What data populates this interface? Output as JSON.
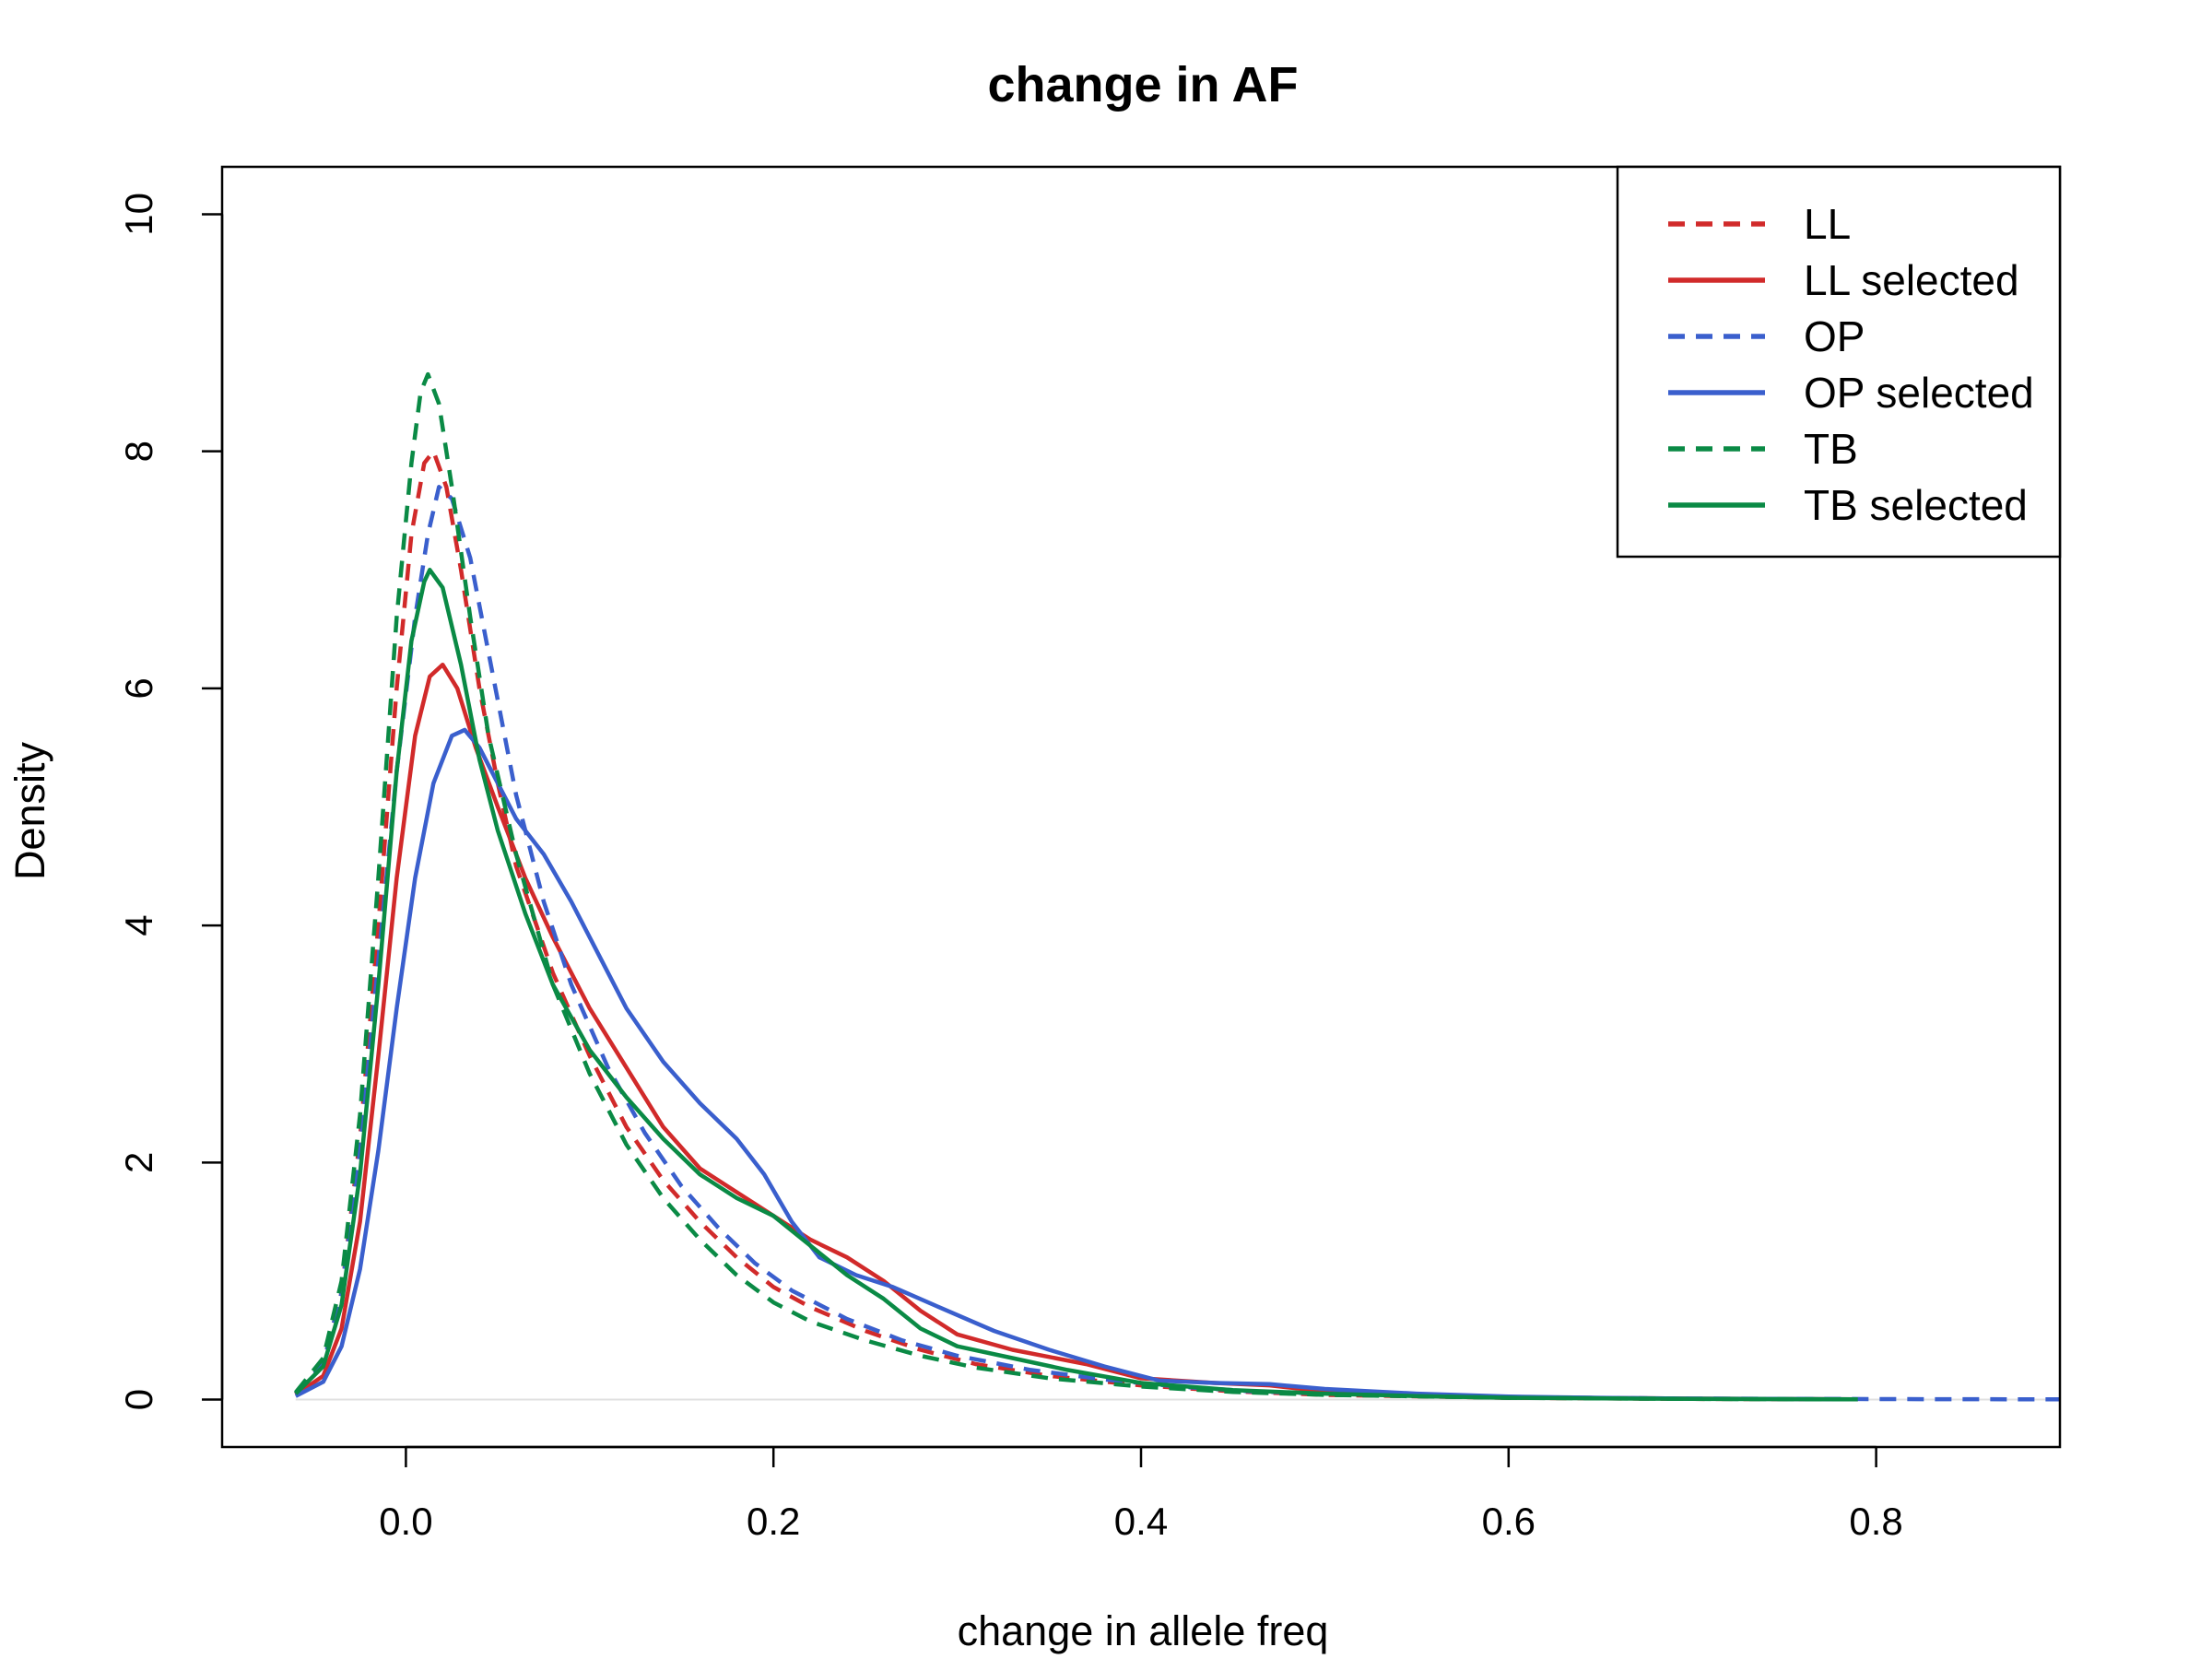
{
  "chart_data": {
    "type": "line",
    "title": "change in AF",
    "xlabel": "change in allele freq",
    "ylabel": "Density",
    "xlim": [
      -0.1,
      0.9
    ],
    "ylim": [
      -0.4,
      10.4
    ],
    "xticks": [
      0.0,
      0.2,
      0.4,
      0.6,
      0.8
    ],
    "xtick_labels": [
      "0.0",
      "0.2",
      "0.4",
      "0.6",
      "0.8"
    ],
    "yticks": [
      0,
      2,
      4,
      6,
      8,
      10
    ],
    "ytick_labels": [
      "0",
      "2",
      "4",
      "6",
      "8",
      "10"
    ],
    "grid": false,
    "legend_position": "top-right",
    "series": [
      {
        "name": "LL",
        "color": "#d12a2a",
        "dash": "dashed",
        "points": [
          [
            -0.06,
            0.05
          ],
          [
            -0.045,
            0.3
          ],
          [
            -0.035,
            0.9
          ],
          [
            -0.025,
            2.2
          ],
          [
            -0.015,
            4.0
          ],
          [
            -0.005,
            6.0
          ],
          [
            0.003,
            7.3
          ],
          [
            0.01,
            7.9
          ],
          [
            0.015,
            8.0
          ],
          [
            0.022,
            7.7
          ],
          [
            0.03,
            7.0
          ],
          [
            0.04,
            6.0
          ],
          [
            0.05,
            5.2
          ],
          [
            0.06,
            4.5
          ],
          [
            0.08,
            3.6
          ],
          [
            0.1,
            2.9
          ],
          [
            0.12,
            2.3
          ],
          [
            0.14,
            1.85
          ],
          [
            0.16,
            1.5
          ],
          [
            0.18,
            1.2
          ],
          [
            0.2,
            0.95
          ],
          [
            0.22,
            0.78
          ],
          [
            0.25,
            0.58
          ],
          [
            0.28,
            0.42
          ],
          [
            0.31,
            0.3
          ],
          [
            0.35,
            0.2
          ],
          [
            0.4,
            0.12
          ],
          [
            0.45,
            0.07
          ],
          [
            0.5,
            0.04
          ],
          [
            0.6,
            0.015
          ],
          [
            0.7,
            0.006
          ],
          [
            0.79,
            0.002
          ]
        ]
      },
      {
        "name": "LL selected",
        "color": "#d12a2a",
        "dash": "solid",
        "points": [
          [
            -0.06,
            0.04
          ],
          [
            -0.045,
            0.2
          ],
          [
            -0.035,
            0.6
          ],
          [
            -0.025,
            1.5
          ],
          [
            -0.015,
            2.9
          ],
          [
            -0.005,
            4.4
          ],
          [
            0.005,
            5.6
          ],
          [
            0.013,
            6.1
          ],
          [
            0.02,
            6.2
          ],
          [
            0.028,
            6.0
          ],
          [
            0.038,
            5.5
          ],
          [
            0.05,
            5.0
          ],
          [
            0.065,
            4.4
          ],
          [
            0.08,
            3.9
          ],
          [
            0.1,
            3.3
          ],
          [
            0.12,
            2.8
          ],
          [
            0.14,
            2.3
          ],
          [
            0.16,
            1.95
          ],
          [
            0.18,
            1.75
          ],
          [
            0.2,
            1.55
          ],
          [
            0.22,
            1.35
          ],
          [
            0.24,
            1.2
          ],
          [
            0.26,
            1.0
          ],
          [
            0.28,
            0.75
          ],
          [
            0.3,
            0.55
          ],
          [
            0.33,
            0.42
          ],
          [
            0.37,
            0.3
          ],
          [
            0.4,
            0.18
          ],
          [
            0.44,
            0.14
          ],
          [
            0.47,
            0.12
          ],
          [
            0.5,
            0.07
          ],
          [
            0.55,
            0.04
          ],
          [
            0.6,
            0.02
          ],
          [
            0.7,
            0.008
          ],
          [
            0.79,
            0.003
          ]
        ]
      },
      {
        "name": "OP",
        "color": "#3a5fcd",
        "dash": "dashed",
        "points": [
          [
            -0.06,
            0.05
          ],
          [
            -0.045,
            0.3
          ],
          [
            -0.035,
            0.9
          ],
          [
            -0.025,
            2.1
          ],
          [
            -0.015,
            3.7
          ],
          [
            -0.005,
            5.3
          ],
          [
            0.005,
            6.6
          ],
          [
            0.012,
            7.3
          ],
          [
            0.018,
            7.7
          ],
          [
            0.025,
            7.6
          ],
          [
            0.035,
            7.1
          ],
          [
            0.045,
            6.3
          ],
          [
            0.06,
            5.1
          ],
          [
            0.075,
            4.2
          ],
          [
            0.09,
            3.5
          ],
          [
            0.11,
            2.8
          ],
          [
            0.13,
            2.25
          ],
          [
            0.15,
            1.8
          ],
          [
            0.17,
            1.45
          ],
          [
            0.19,
            1.15
          ],
          [
            0.21,
            0.92
          ],
          [
            0.24,
            0.68
          ],
          [
            0.27,
            0.5
          ],
          [
            0.3,
            0.37
          ],
          [
            0.34,
            0.25
          ],
          [
            0.38,
            0.17
          ],
          [
            0.42,
            0.11
          ],
          [
            0.46,
            0.07
          ],
          [
            0.5,
            0.05
          ],
          [
            0.6,
            0.02
          ],
          [
            0.7,
            0.008
          ],
          [
            0.8,
            0.004
          ],
          [
            0.9,
            0.002
          ]
        ]
      },
      {
        "name": "OP selected",
        "color": "#3a5fcd",
        "dash": "solid",
        "points": [
          [
            -0.06,
            0.03
          ],
          [
            -0.045,
            0.15
          ],
          [
            -0.035,
            0.45
          ],
          [
            -0.025,
            1.1
          ],
          [
            -0.015,
            2.1
          ],
          [
            -0.005,
            3.3
          ],
          [
            0.005,
            4.4
          ],
          [
            0.015,
            5.2
          ],
          [
            0.025,
            5.6
          ],
          [
            0.032,
            5.65
          ],
          [
            0.04,
            5.5
          ],
          [
            0.05,
            5.2
          ],
          [
            0.06,
            4.9
          ],
          [
            0.075,
            4.6
          ],
          [
            0.09,
            4.2
          ],
          [
            0.105,
            3.75
          ],
          [
            0.12,
            3.3
          ],
          [
            0.14,
            2.85
          ],
          [
            0.16,
            2.5
          ],
          [
            0.18,
            2.2
          ],
          [
            0.195,
            1.9
          ],
          [
            0.21,
            1.5
          ],
          [
            0.225,
            1.2
          ],
          [
            0.245,
            1.05
          ],
          [
            0.265,
            0.95
          ],
          [
            0.29,
            0.78
          ],
          [
            0.32,
            0.58
          ],
          [
            0.35,
            0.42
          ],
          [
            0.38,
            0.28
          ],
          [
            0.41,
            0.16
          ],
          [
            0.44,
            0.14
          ],
          [
            0.47,
            0.13
          ],
          [
            0.5,
            0.09
          ],
          [
            0.55,
            0.05
          ],
          [
            0.6,
            0.025
          ],
          [
            0.65,
            0.015
          ],
          [
            0.7,
            0.008
          ],
          [
            0.79,
            0.003
          ]
        ]
      },
      {
        "name": "TB",
        "color": "#0a8a45",
        "dash": "dashed",
        "points": [
          [
            -0.06,
            0.06
          ],
          [
            -0.045,
            0.35
          ],
          [
            -0.035,
            1.0
          ],
          [
            -0.025,
            2.4
          ],
          [
            -0.015,
            4.4
          ],
          [
            -0.005,
            6.6
          ],
          [
            0.003,
            7.9
          ],
          [
            0.008,
            8.5
          ],
          [
            0.012,
            8.65
          ],
          [
            0.018,
            8.4
          ],
          [
            0.025,
            7.7
          ],
          [
            0.035,
            6.6
          ],
          [
            0.045,
            5.6
          ],
          [
            0.06,
            4.6
          ],
          [
            0.08,
            3.5
          ],
          [
            0.1,
            2.75
          ],
          [
            0.12,
            2.15
          ],
          [
            0.14,
            1.7
          ],
          [
            0.16,
            1.35
          ],
          [
            0.18,
            1.05
          ],
          [
            0.2,
            0.82
          ],
          [
            0.22,
            0.66
          ],
          [
            0.25,
            0.5
          ],
          [
            0.28,
            0.37
          ],
          [
            0.31,
            0.27
          ],
          [
            0.35,
            0.18
          ],
          [
            0.4,
            0.11
          ],
          [
            0.45,
            0.065
          ],
          [
            0.5,
            0.04
          ],
          [
            0.6,
            0.015
          ],
          [
            0.7,
            0.006
          ],
          [
            0.79,
            0.002
          ]
        ]
      },
      {
        "name": "TB selected",
        "color": "#0a8a45",
        "dash": "solid",
        "points": [
          [
            -0.06,
            0.05
          ],
          [
            -0.045,
            0.28
          ],
          [
            -0.035,
            0.8
          ],
          [
            -0.025,
            1.9
          ],
          [
            -0.015,
            3.5
          ],
          [
            -0.005,
            5.3
          ],
          [
            0.003,
            6.4
          ],
          [
            0.01,
            6.9
          ],
          [
            0.013,
            7.0
          ],
          [
            0.02,
            6.85
          ],
          [
            0.03,
            6.2
          ],
          [
            0.04,
            5.4
          ],
          [
            0.05,
            4.8
          ],
          [
            0.065,
            4.1
          ],
          [
            0.08,
            3.5
          ],
          [
            0.1,
            2.95
          ],
          [
            0.12,
            2.55
          ],
          [
            0.14,
            2.2
          ],
          [
            0.16,
            1.9
          ],
          [
            0.18,
            1.7
          ],
          [
            0.2,
            1.55
          ],
          [
            0.22,
            1.3
          ],
          [
            0.24,
            1.05
          ],
          [
            0.26,
            0.85
          ],
          [
            0.28,
            0.6
          ],
          [
            0.3,
            0.45
          ],
          [
            0.33,
            0.35
          ],
          [
            0.36,
            0.25
          ],
          [
            0.4,
            0.14
          ],
          [
            0.45,
            0.08
          ],
          [
            0.5,
            0.05
          ],
          [
            0.55,
            0.03
          ],
          [
            0.6,
            0.015
          ],
          [
            0.7,
            0.006
          ],
          [
            0.79,
            0.002
          ]
        ]
      }
    ]
  }
}
